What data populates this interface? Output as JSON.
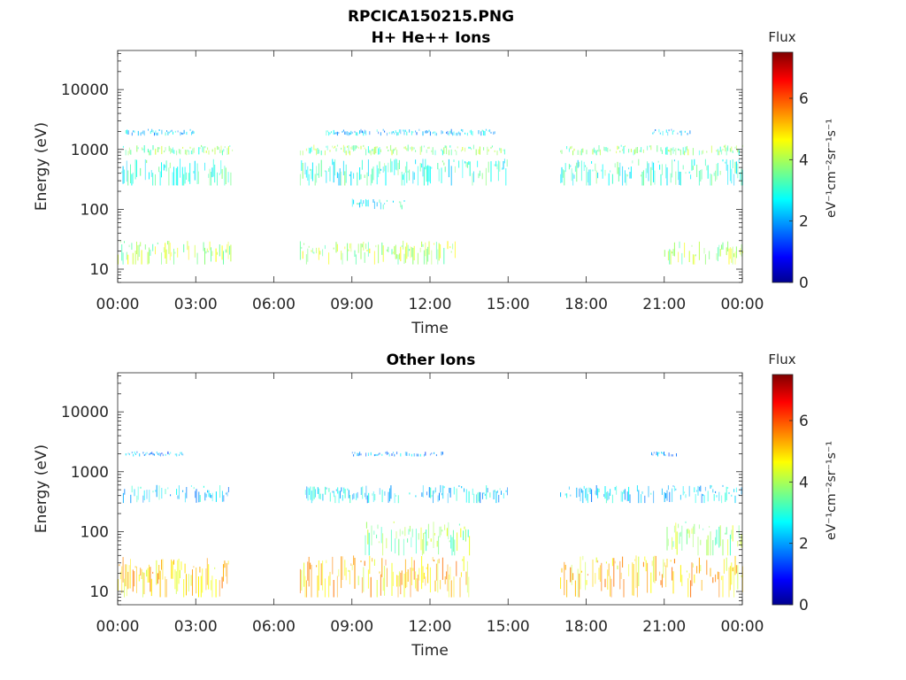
{
  "figure_title": "RPCICA150215.PNG",
  "colors": {
    "colormap": [
      "#00008f",
      "#0000ff",
      "#00ffff",
      "#ffff00",
      "#ff0000",
      "#800000"
    ],
    "axis": "#262626",
    "background": "#ffffff"
  },
  "chart_data": [
    {
      "type": "heatmap",
      "title": "H+ He++ Ions",
      "xlabel": "Time",
      "ylabel": "Energy (eV)",
      "x_range_hours": [
        0,
        24
      ],
      "x_ticks": [
        "00:00",
        "03:00",
        "06:00",
        "09:00",
        "12:00",
        "15:00",
        "18:00",
        "21:00",
        "00:00"
      ],
      "y_scale": "log",
      "y_range": [
        6,
        45000
      ],
      "y_ticks": [
        10,
        100,
        1000,
        10000
      ],
      "y_tick_labels": [
        "10",
        "100",
        "1000",
        "10000"
      ],
      "colorbar": {
        "label": "Flux",
        "unit_label": "eV⁻¹cm⁻²sr⁻¹s⁻¹",
        "range": [
          0,
          7.5
        ],
        "ticks": [
          0,
          2,
          4,
          6
        ],
        "tick_labels": [
          "0",
          "2",
          "4",
          "6"
        ]
      },
      "data_gaps_hours": [
        [
          4.5,
          7.0
        ],
        [
          15.1,
          16.9
        ]
      ],
      "bands": [
        {
          "energy": [
            1700,
            2200
          ],
          "flux": 2.3,
          "intervals": [
            [
              0.3,
              3.0
            ],
            [
              8.0,
              14.5
            ],
            [
              20.5,
              22.0
            ]
          ]
        },
        {
          "energy": [
            800,
            1200
          ],
          "flux": 3.6,
          "intervals": [
            [
              0.2,
              4.4
            ],
            [
              7.0,
              15.0
            ],
            [
              17.0,
              24.0
            ]
          ]
        },
        {
          "energy": [
            250,
            700
          ],
          "flux": 3.0,
          "intervals": [
            [
              0.0,
              4.4
            ],
            [
              7.0,
              15.0
            ],
            [
              17.0,
              24.0
            ]
          ]
        },
        {
          "energy": [
            100,
            150
          ],
          "flux": 2.8,
          "intervals": [
            [
              9.0,
              11.0
            ]
          ]
        },
        {
          "energy": [
            12,
            30
          ],
          "flux": 4.0,
          "intervals": [
            [
              0.0,
              4.4
            ],
            [
              7.0,
              13.0
            ],
            [
              21.0,
              24.0
            ]
          ]
        }
      ]
    },
    {
      "type": "heatmap",
      "title": "Other Ions",
      "xlabel": "Time",
      "ylabel": "Energy (eV)",
      "x_range_hours": [
        0,
        24
      ],
      "x_ticks": [
        "00:00",
        "03:00",
        "06:00",
        "09:00",
        "12:00",
        "15:00",
        "18:00",
        "21:00",
        "00:00"
      ],
      "y_scale": "log",
      "y_range": [
        6,
        45000
      ],
      "y_ticks": [
        10,
        100,
        1000,
        10000
      ],
      "y_tick_labels": [
        "10",
        "100",
        "1000",
        "10000"
      ],
      "colorbar": {
        "label": "Flux",
        "unit_label": "eV⁻¹cm⁻²sr⁻¹s⁻¹",
        "range": [
          0,
          7.5
        ],
        "ticks": [
          0,
          2,
          4,
          6
        ],
        "tick_labels": [
          "0",
          "2",
          "4",
          "6"
        ]
      },
      "data_gaps_hours": [
        [
          4.5,
          7.0
        ],
        [
          15.1,
          16.9
        ]
      ],
      "bands": [
        {
          "energy": [
            1800,
            2200
          ],
          "flux": 2.0,
          "intervals": [
            [
              0.3,
              2.5
            ],
            [
              9.0,
              12.5
            ],
            [
              20.5,
              21.5
            ]
          ]
        },
        {
          "energy": [
            300,
            600
          ],
          "flux": 2.4,
          "intervals": [
            [
              0.2,
              4.4
            ],
            [
              7.2,
              15.0
            ],
            [
              17.0,
              24.0
            ]
          ]
        },
        {
          "energy": [
            40,
            150
          ],
          "flux": 3.8,
          "intervals": [
            [
              9.5,
              13.5
            ],
            [
              21.0,
              24.0
            ]
          ]
        },
        {
          "energy": [
            8,
            40
          ],
          "flux": 5.0,
          "intervals": [
            [
              0.0,
              4.4
            ],
            [
              7.0,
              13.5
            ],
            [
              17.0,
              24.0
            ]
          ]
        }
      ]
    }
  ]
}
